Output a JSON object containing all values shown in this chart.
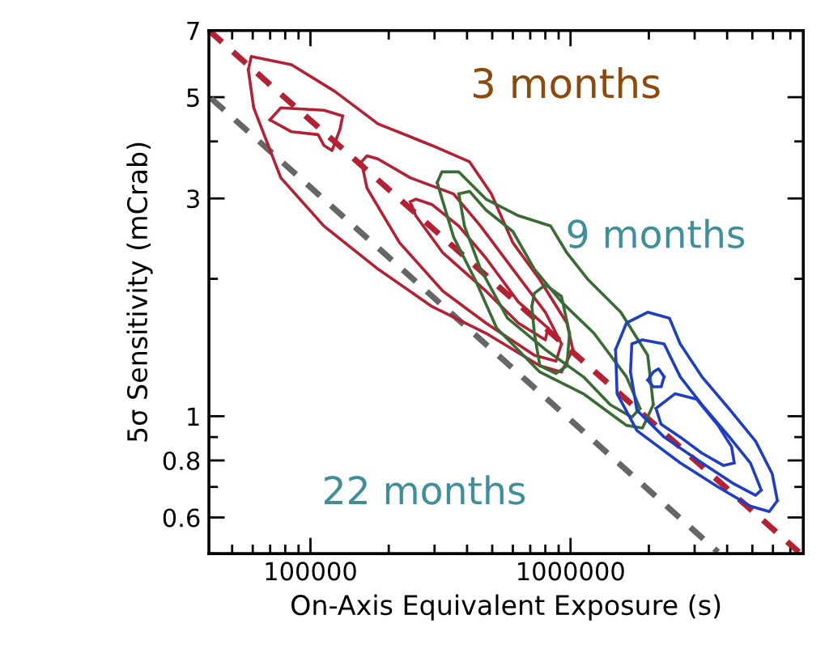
{
  "chart_data": {
    "type": "line",
    "xlabel": "On-Axis Equivalent Exposure (s)",
    "ylabel": "5σ Sensitivity (mCrab)",
    "log": "xy",
    "grid": false,
    "marker": "none",
    "xlim": [
      40700,
      7850000
    ],
    "ylim": [
      0.5,
      7
    ],
    "xticks": [
      {
        "value": 50000,
        "label": null
      },
      {
        "value": 60000,
        "label": null
      },
      {
        "value": 70000,
        "label": null
      },
      {
        "value": 80000,
        "label": null
      },
      {
        "value": 90000,
        "label": null
      },
      100000,
      {
        "value": 200000,
        "label": null
      },
      {
        "value": 300000,
        "label": null
      },
      {
        "value": 400000,
        "label": null
      },
      {
        "value": 500000,
        "label": null
      },
      {
        "value": 600000,
        "label": null
      },
      {
        "value": 700000,
        "label": null
      },
      {
        "value": 800000,
        "label": null
      },
      {
        "value": 900000,
        "label": null
      },
      1000000,
      {
        "value": 2000000,
        "label": null
      },
      {
        "value": 3000000,
        "label": null
      },
      {
        "value": 4000000,
        "label": null
      },
      {
        "value": 5000000,
        "label": null
      },
      {
        "value": 6000000,
        "label": null
      },
      {
        "value": 7000000,
        "label": null
      }
    ],
    "yticks": [
      {
        "value": 0.5,
        "label": null
      },
      0.6,
      {
        "value": 0.7,
        "label": null
      },
      0.8,
      {
        "value": 0.9,
        "label": null
      },
      1,
      {
        "value": 2,
        "label": null
      },
      3,
      {
        "value": 4,
        "label": null
      },
      5,
      7
    ],
    "annotations": [
      "3 months",
      "9 months",
      "22 months"
    ],
    "series": [
      {
        "color": "#b22234",
        "line_style": "dashed",
        "x": [
          40700,
          7550000
        ],
        "values": [
          7,
          0.504
        ]
      },
      {
        "color": "#666666",
        "line_style": "dashed",
        "x": [
          41500,
          3690000
        ],
        "values": [
          4.97,
          0.504
        ]
      },
      {
        "color": "#b22234",
        "line_style": "solid",
        "x": [
          57700,
          59200,
          84600,
          124000,
          182000,
          293000,
          409000,
          496000,
          600000,
          762000,
          968000,
          1020000,
          null,
          57700,
          60500,
          76900,
          112700,
          182000,
          293000,
          473000,
          762000,
          923000,
          1020000
        ],
        "values": [
          5.74,
          6.14,
          5.89,
          5.15,
          4.37,
          3.92,
          3.61,
          3.07,
          2.4,
          1.99,
          1.6,
          1.4,
          null,
          5.74,
          4.74,
          3.33,
          2.61,
          2.1,
          1.74,
          1.52,
          1.29,
          1.25,
          1.4
        ]
      },
      {
        "color": "#b22234",
        "line_style": "solid",
        "x": [
          69800,
          76900,
          112700,
          133000,
          null,
          69800,
          84600,
          107000,
          112700,
          121000,
          130000,
          133000
        ],
        "values": [
          4.46,
          4.74,
          4.68,
          4.55,
          null,
          4.46,
          4.2,
          4.14,
          3.92,
          3.82,
          4.26,
          4.55
        ]
      },
      {
        "color": "#b22234",
        "line_style": "solid",
        "x": [
          157000,
          165000,
          182000,
          242000,
          355000,
          451000,
          600000,
          800000,
          923000,
          null,
          157000,
          165000,
          220000,
          323000,
          473000,
          726000,
          879000,
          923000
        ],
        "values": [
          3.61,
          3.72,
          3.66,
          3.33,
          3.07,
          2.61,
          2.1,
          1.69,
          1.44,
          null,
          3.61,
          3.16,
          2.4,
          1.88,
          1.6,
          1.36,
          1.32,
          1.44
        ]
      },
      {
        "color": "#b22234",
        "line_style": "solid",
        "x": [
          242000,
          254000,
          293000,
          372000,
          473000,
          630000,
          819000,
          null,
          242000,
          254000,
          323000,
          473000,
          630000,
          800000,
          819000
        ],
        "values": [
          2.95,
          2.99,
          2.91,
          2.61,
          2.22,
          1.78,
          1.56,
          null,
          2.95,
          2.75,
          2.28,
          1.88,
          1.6,
          1.47,
          1.56
        ]
      },
      {
        "color": "#3a6b35",
        "line_style": "solid",
        "x": [
          307000,
          320000,
          372000,
          473000,
          630000,
          839000,
          968000,
          1170000,
          1560000,
          1980000,
          2080000,
          null,
          307000,
          355000,
          430000,
          520000,
          762000,
          1120000,
          1640000,
          1890000,
          2080000
        ],
        "values": [
          3.25,
          3.43,
          3.43,
          2.99,
          2.75,
          2.61,
          2.28,
          1.99,
          1.69,
          1.36,
          1.06,
          null,
          3.25,
          2.47,
          1.99,
          1.56,
          1.25,
          1.12,
          0.955,
          0.942,
          1.06
        ]
      },
      {
        "color": "#3a6b35",
        "line_style": "solid",
        "x": [
          372000,
          409000,
          473000,
          600000,
          726000,
          923000,
          1230000,
          1640000,
          1850000,
          null,
          372000,
          391000,
          451000,
          572000,
          800000,
          1120000,
          1420000,
          1720000,
          1850000
        ],
        "values": [
          3.07,
          3.11,
          2.83,
          2.54,
          2.1,
          1.78,
          1.52,
          1.22,
          1.04,
          null,
          3.07,
          2.61,
          2.1,
          1.64,
          1.4,
          1.22,
          1.06,
          0.995,
          1.04
        ]
      },
      {
        "color": "#3a6b35",
        "line_style": "solid",
        "x": [
          710000,
          726000,
          800000,
          923000,
          991000,
          null,
          710000,
          726000,
          762000,
          879000,
          968000,
          991000
        ],
        "values": [
          1.74,
          1.86,
          1.94,
          1.83,
          1.52,
          null,
          1.74,
          1.52,
          1.29,
          1.24,
          1.29,
          1.52
        ]
      },
      {
        "color": "#1f3fbf",
        "line_style": "solid",
        "x": [
          1490000,
          1640000,
          1980000,
          2400000,
          2640000,
          3200000,
          4060000,
          5150000,
          5960000,
          6240000,
          null,
          1490000,
          1510000,
          1800000,
          2640000,
          3690000,
          4920000,
          5810000,
          6240000
        ],
        "values": [
          1.4,
          1.6,
          1.69,
          1.64,
          1.44,
          1.22,
          1.04,
          0.881,
          0.748,
          0.653,
          null,
          1.4,
          1.12,
          0.93,
          0.79,
          0.7,
          0.635,
          0.618,
          0.653
        ]
      },
      {
        "color": "#1f3fbf",
        "line_style": "solid",
        "x": [
          1700000,
          1720000,
          1890000,
          2290000,
          2640000,
          3200000,
          4060000,
          4920000,
          5410000,
          null,
          1700000,
          1800000,
          2290000,
          3200000,
          4260000,
          5150000,
          5410000
        ],
        "values": [
          1.25,
          1.44,
          1.47,
          1.44,
          1.22,
          1.06,
          0.904,
          0.789,
          0.689,
          null,
          1.25,
          1.03,
          0.9,
          0.79,
          0.71,
          0.671,
          0.689
        ]
      },
      {
        "color": "#1f3fbf",
        "line_style": "solid",
        "x": [
          2130000,
          2520000,
          3050000,
          3690000,
          4160000,
          4260000,
          null,
          2130000,
          2230000,
          2640000,
          3200000,
          3870000,
          4260000
        ],
        "values": [
          1.04,
          1.12,
          1.09,
          0.955,
          0.857,
          0.79,
          null,
          1.04,
          0.96,
          0.9,
          0.83,
          0.78,
          0.79
        ]
      },
      {
        "color": "#1f3fbf",
        "line_style": "solid",
        "x": [
          1980000,
          2080000,
          2180000,
          2290000,
          null,
          1980000,
          2080000,
          2230000,
          2290000
        ],
        "values": [
          1.2,
          1.25,
          1.27,
          1.22,
          null,
          1.2,
          1.16,
          1.16,
          1.22
        ]
      }
    ]
  }
}
